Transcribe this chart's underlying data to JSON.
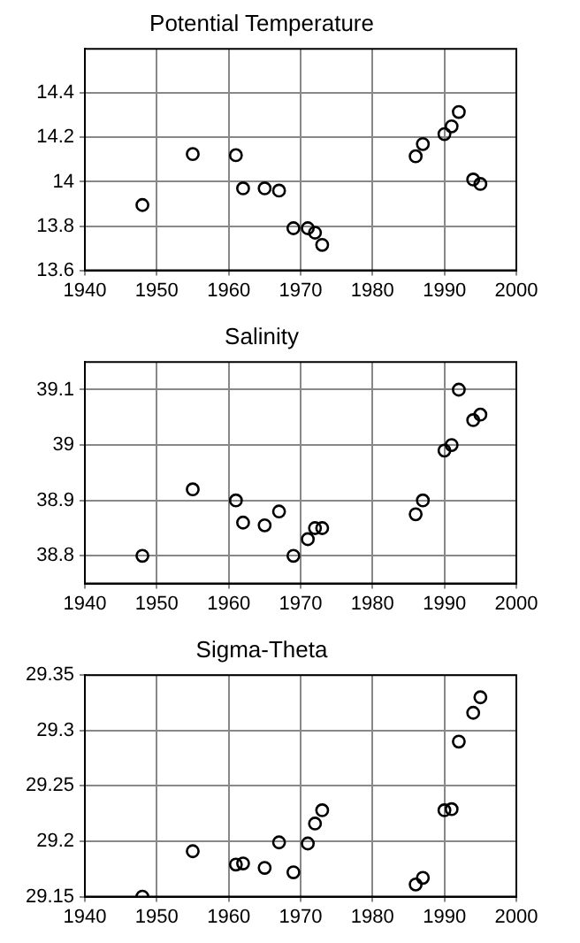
{
  "chart_data": [
    {
      "type": "scatter",
      "title": "Potential Temperature",
      "x": [
        1948,
        1955,
        1961,
        1962,
        1965,
        1967,
        1969,
        1971,
        1972,
        1973,
        1986,
        1987,
        1990,
        1991,
        1992,
        1994,
        1995
      ],
      "series": [
        {
          "color": "#000000",
          "values": [
            13.895,
            14.125,
            14.12,
            13.97,
            13.97,
            13.96,
            13.79,
            13.79,
            13.77,
            13.715,
            14.115,
            14.17,
            14.215,
            14.25,
            14.315,
            14.01,
            13.99
          ]
        }
      ],
      "xlim": [
        1940,
        2000
      ],
      "xticks": [
        1940,
        1950,
        1960,
        1970,
        1980,
        1990,
        2000
      ],
      "ylim": [
        13.6,
        14.6
      ],
      "yticks": [
        13.6,
        13.8,
        14,
        14.2,
        14.4
      ],
      "grid": true,
      "legend": false,
      "marker": "circle"
    },
    {
      "type": "scatter",
      "title": "Salinity",
      "x": [
        1948,
        1955,
        1961,
        1962,
        1965,
        1967,
        1969,
        1971,
        1972,
        1973,
        1986,
        1987,
        1990,
        1991,
        1992,
        1994,
        1995
      ],
      "series": [
        {
          "color": "#000000",
          "values": [
            38.8,
            38.92,
            38.9,
            38.86,
            38.855,
            38.88,
            38.8,
            38.83,
            38.85,
            38.85,
            38.875,
            38.9,
            38.99,
            39.0,
            39.1,
            39.045,
            39.055
          ]
        }
      ],
      "xlim": [
        1940,
        2000
      ],
      "xticks": [
        1940,
        1950,
        1960,
        1970,
        1980,
        1990,
        2000
      ],
      "ylim": [
        38.75,
        39.15
      ],
      "yticks": [
        38.8,
        38.9,
        39,
        39.1
      ],
      "grid": true,
      "legend": false,
      "marker": "circle"
    },
    {
      "type": "scatter",
      "title": "Sigma-Theta",
      "x": [
        1948,
        1955,
        1961,
        1962,
        1965,
        1967,
        1969,
        1971,
        1972,
        1973,
        1986,
        1987,
        1990,
        1991,
        1992,
        1994,
        1995
      ],
      "series": [
        {
          "color": "#000000",
          "values": [
            29.15,
            29.191,
            29.179,
            29.18,
            29.176,
            29.199,
            29.172,
            29.198,
            29.216,
            29.228,
            29.161,
            29.167,
            29.228,
            29.229,
            29.29,
            29.316,
            29.33
          ]
        }
      ],
      "xlim": [
        1940,
        2000
      ],
      "xticks": [
        1940,
        1950,
        1960,
        1970,
        1980,
        1990,
        2000
      ],
      "ylim": [
        29.15,
        29.35
      ],
      "yticks": [
        29.15,
        29.2,
        29.25,
        29.3,
        29.35
      ],
      "grid": true,
      "legend": false,
      "marker": "circle"
    }
  ]
}
